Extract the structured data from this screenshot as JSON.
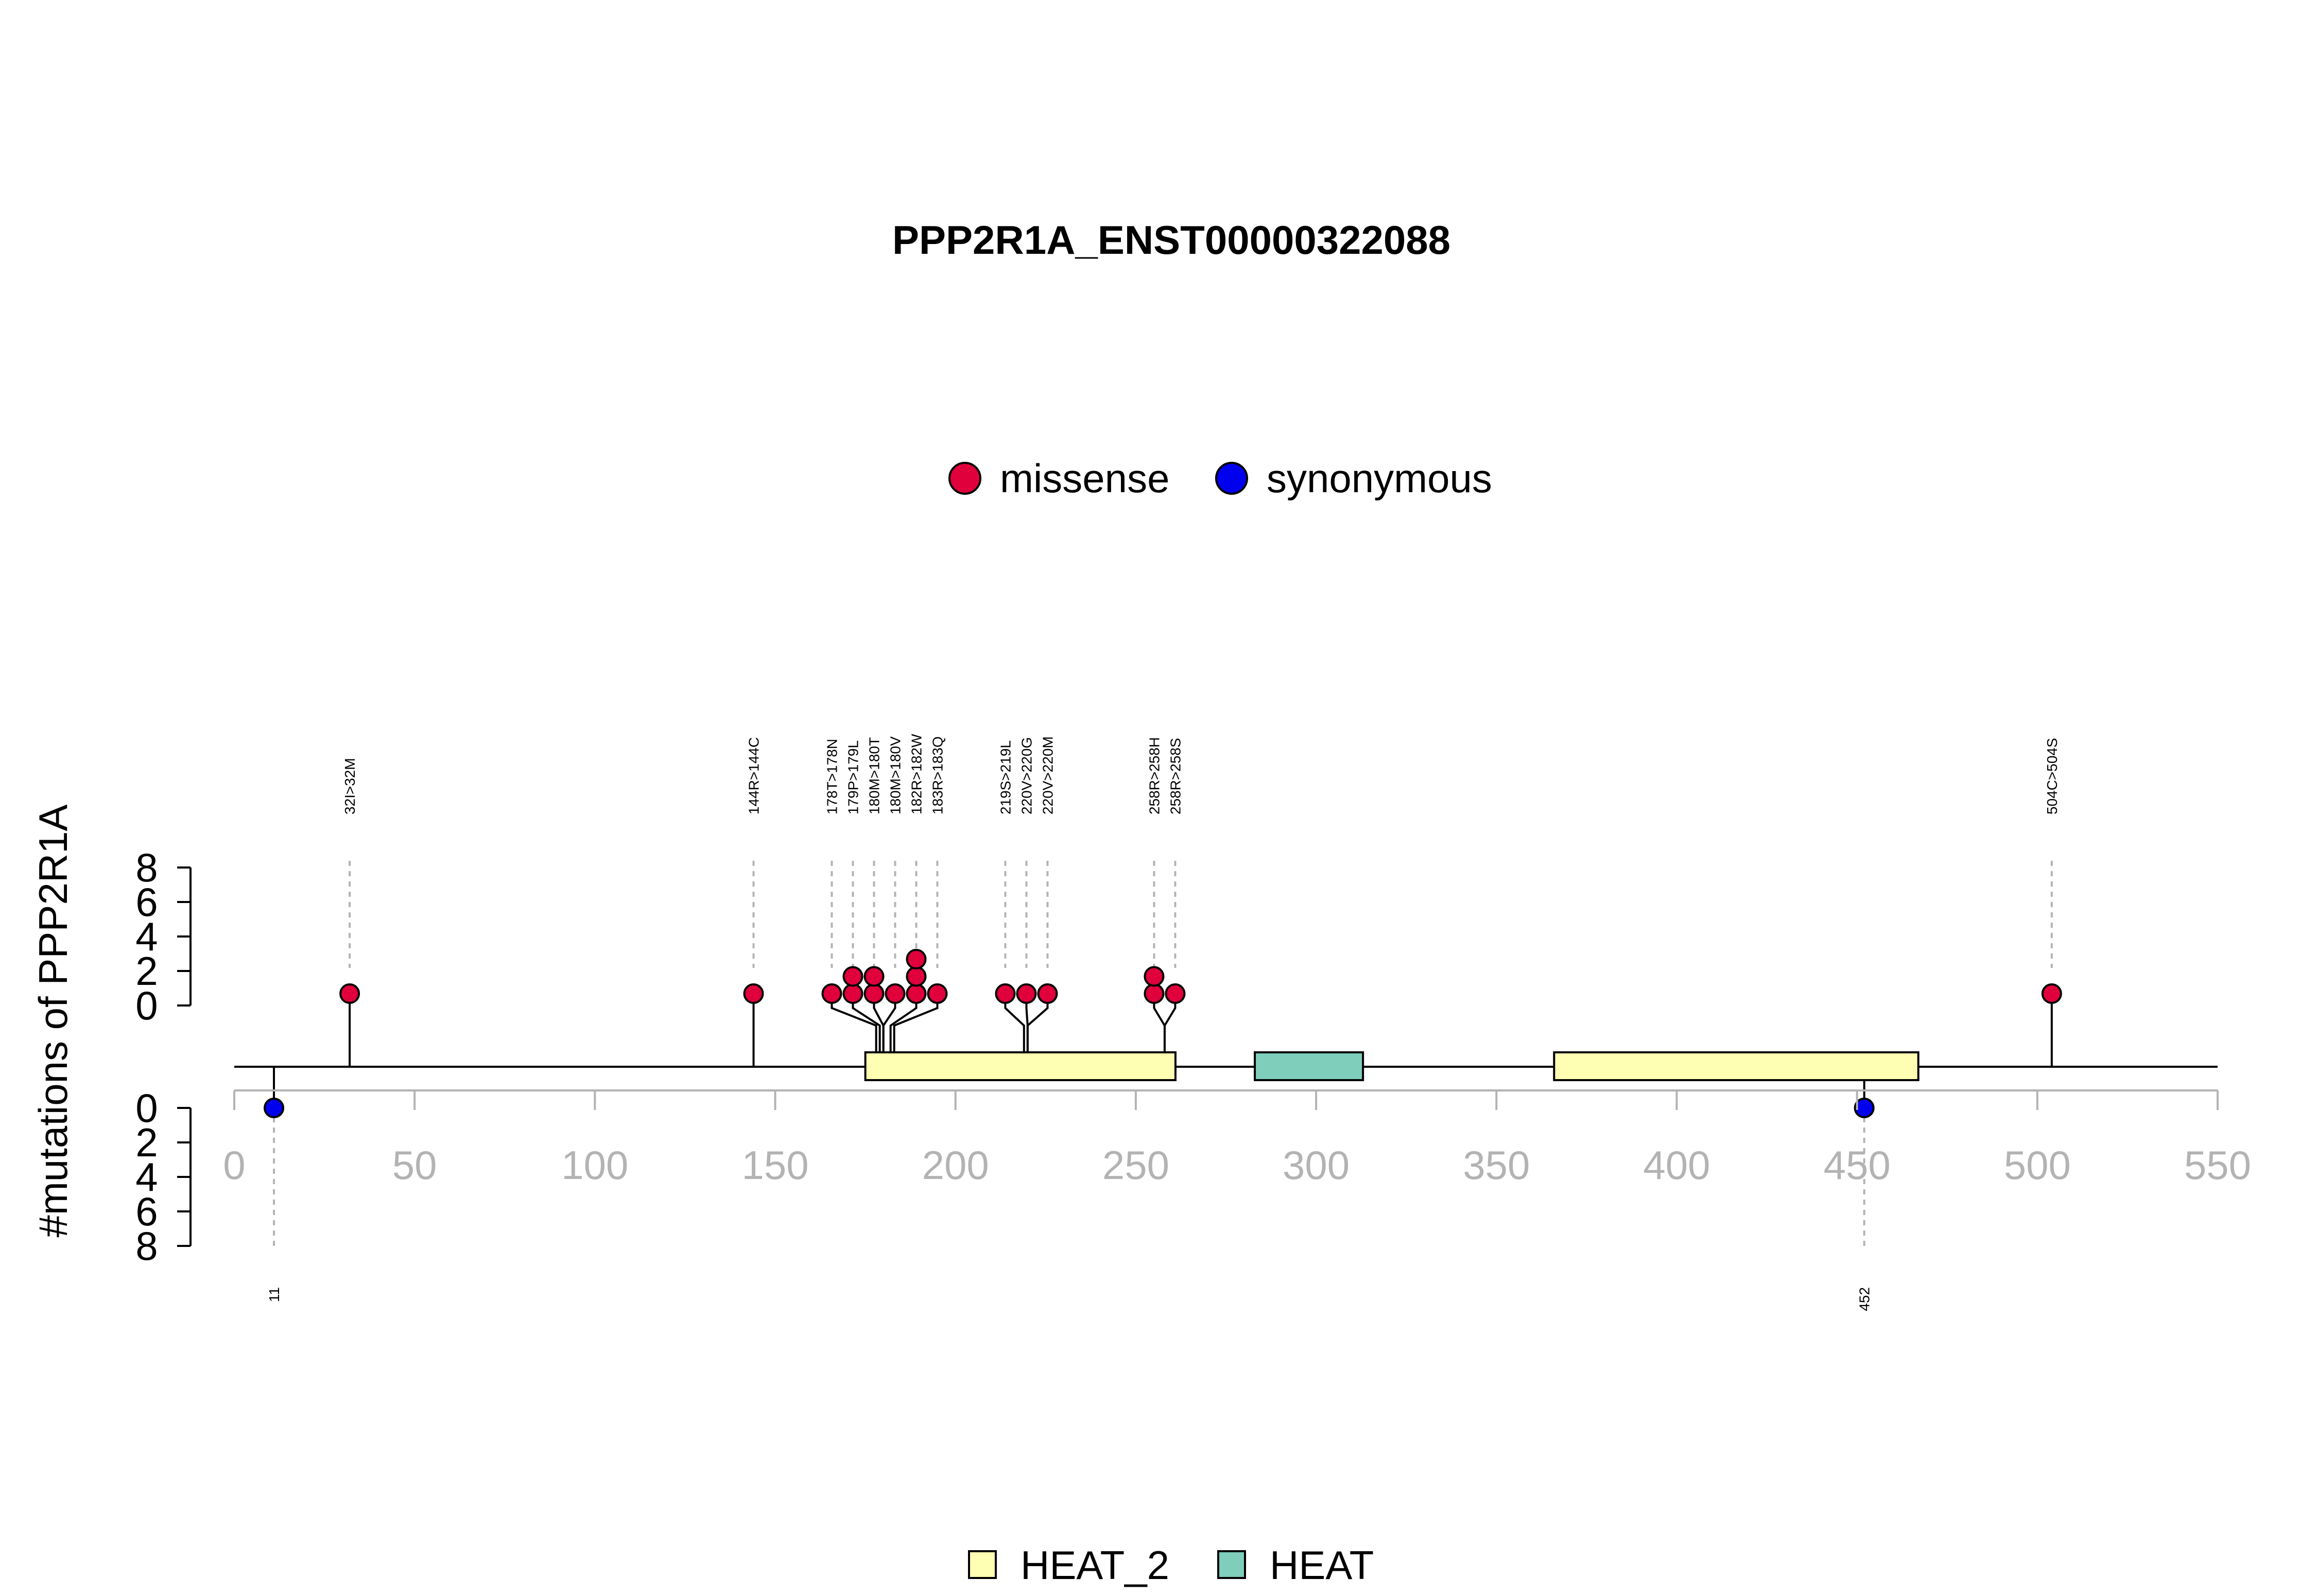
{
  "chart_data": {
    "type": "lollipop",
    "title": "PPP2R1A_ENST00000322088",
    "ylabel": "#mutations of PPP2R1A",
    "xlim": [
      0,
      550
    ],
    "x_ticks": [
      0,
      50,
      100,
      150,
      200,
      250,
      300,
      350,
      400,
      450,
      500,
      550
    ],
    "y_ticks": [
      0,
      2,
      4,
      6,
      8
    ],
    "ylim": [
      0,
      8
    ],
    "colors": {
      "missense": "#e0003c",
      "synonymous": "#0000ee",
      "HEAT_2": "#ffffb3",
      "HEAT": "#7fcdbb",
      "axis_tick_text": "#b3b3b3",
      "guide_line": "#b3b3b3"
    },
    "mutation_legend": [
      {
        "name": "missense",
        "color": "#e0003c"
      },
      {
        "name": "synonymous",
        "color": "#0000ee"
      }
    ],
    "domain_legend": [
      {
        "name": "HEAT_2",
        "color": "#ffffb3"
      },
      {
        "name": "HEAT",
        "color": "#7fcdbb"
      }
    ],
    "domains": [
      {
        "name": "HEAT_2",
        "start": 175,
        "end": 261
      },
      {
        "name": "HEAT",
        "start": 283,
        "end": 313
      },
      {
        "name": "HEAT_2",
        "start": 366,
        "end": 467
      }
    ],
    "top_sites": [
      {
        "position": 32,
        "label": "32I>32M",
        "type": "missense",
        "count": 1
      },
      {
        "position": 144,
        "label": "144R>144C",
        "type": "missense",
        "count": 1
      },
      {
        "position": 178,
        "label": "178T>178N",
        "type": "missense",
        "count": 1
      },
      {
        "position": 179,
        "label": "179P>179L",
        "type": "missense",
        "count": 2
      },
      {
        "position": 180,
        "label": "180M>180T",
        "type": "missense",
        "count": 2
      },
      {
        "position": 180,
        "label": "180M>180V",
        "type": "missense",
        "count": 1
      },
      {
        "position": 182,
        "label": "182R>182W",
        "type": "missense",
        "count": 3
      },
      {
        "position": 183,
        "label": "183R>183Q",
        "type": "missense",
        "count": 1
      },
      {
        "position": 219,
        "label": "219S>219L",
        "type": "missense",
        "count": 1
      },
      {
        "position": 220,
        "label": "220V>220G",
        "type": "missense",
        "count": 1
      },
      {
        "position": 220,
        "label": "220V>220M",
        "type": "missense",
        "count": 1
      },
      {
        "position": 258,
        "label": "258R>258H",
        "type": "missense",
        "count": 2
      },
      {
        "position": 258,
        "label": "258R>258S",
        "type": "missense",
        "count": 1
      },
      {
        "position": 504,
        "label": "504C>504S",
        "type": "missense",
        "count": 1
      }
    ],
    "bottom_sites": [
      {
        "position": 11,
        "label": "11",
        "type": "synonymous",
        "count": 1
      },
      {
        "position": 452,
        "label": "452",
        "type": "synonymous",
        "count": 1
      }
    ]
  }
}
